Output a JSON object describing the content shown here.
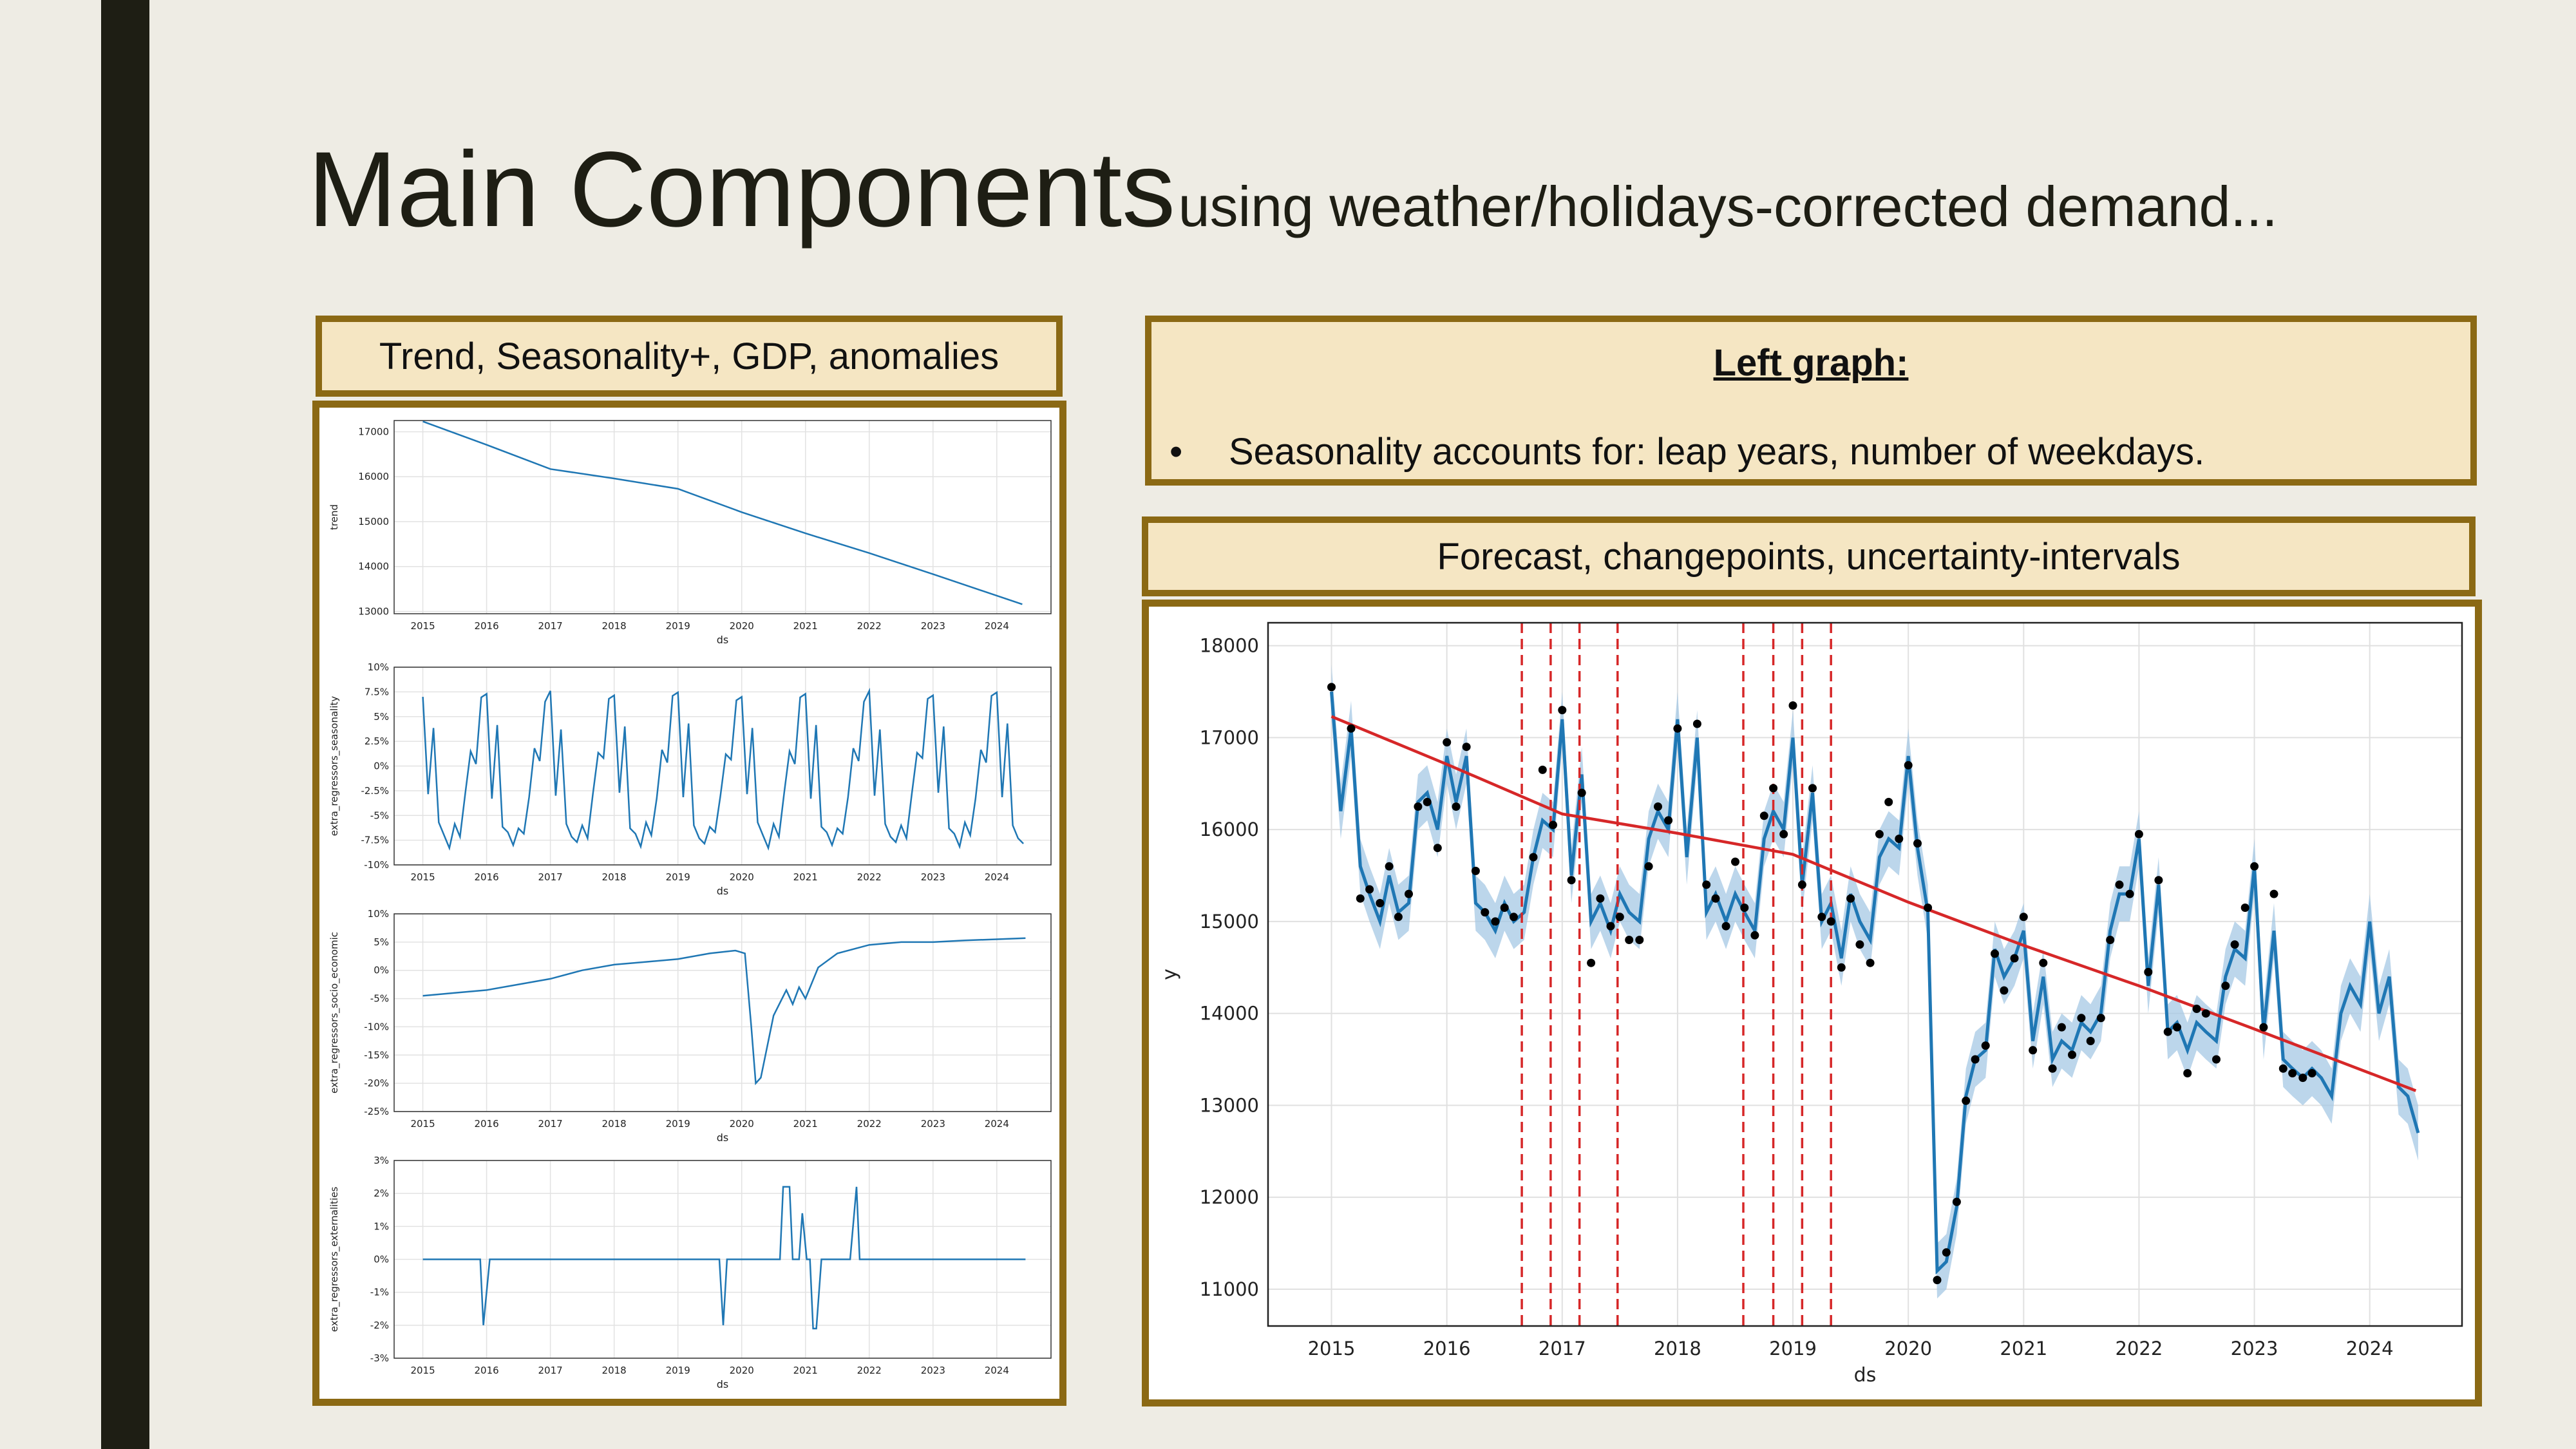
{
  "slide": {
    "title_main": "Main Components",
    "title_sub": "using weather/holidays-corrected demand...",
    "left_header": "Trend, Seasonality+, GDP, anomalies",
    "right_header": "Forecast, changepoints, uncertainty-intervals",
    "note_title": "Left graph:",
    "note_bullet": "•",
    "note_text": "Seasonality accounts for: leap years, number of weekdays."
  },
  "colors": {
    "accent_border": "#8B6914",
    "header_fill": "#F5E6C3",
    "series_blue": "#1f77b4",
    "trend_red": "#d62728",
    "band_blue": "#a6c8e4"
  },
  "chart_data": [
    {
      "type": "line",
      "xlabel": "ds",
      "ylabel": "trend",
      "x_ticks": [
        "2015",
        "2016",
        "2017",
        "2018",
        "2019",
        "2020",
        "2021",
        "2022",
        "2023",
        "2024"
      ],
      "y_ticks": [
        "17000",
        "16000",
        "15000",
        "14000",
        "13000"
      ],
      "ylim": [
        12950,
        17250
      ],
      "x": [
        2015.0,
        2016.0,
        2017.0,
        2018.0,
        2019.0,
        2020.0,
        2021.0,
        2022.0,
        2023.0,
        2024.4
      ],
      "y": [
        17230,
        16710,
        16170,
        15960,
        15730,
        15210,
        14740,
        14300,
        13830,
        13160
      ]
    },
    {
      "type": "line",
      "xlabel": "ds",
      "ylabel": "extra_regressors_seasonality",
      "x_ticks": [
        "2015",
        "2016",
        "2017",
        "2018",
        "2019",
        "2020",
        "2021",
        "2022",
        "2023",
        "2024"
      ],
      "y_ticks": [
        "10%",
        "7.5%",
        "5%",
        "2.5%",
        "0%",
        "-2.5%",
        "-5%",
        "-7.5%",
        "-10%"
      ],
      "ylim": [
        -10,
        10
      ],
      "y_monthly_pattern": [
        7.3,
        -3,
        4,
        -6,
        -7,
        -8,
        -6,
        -7,
        -3,
        1.5,
        0.5,
        6.8
      ]
    },
    {
      "type": "line",
      "xlabel": "ds",
      "ylabel": "extra_regressors_socio_economic",
      "x_ticks": [
        "2015",
        "2016",
        "2017",
        "2018",
        "2019",
        "2020",
        "2021",
        "2022",
        "2023",
        "2024"
      ],
      "y_ticks": [
        "10%",
        "5%",
        "0%",
        "-5%",
        "-10%",
        "-15%",
        "-20%",
        "-25%"
      ],
      "ylim": [
        -25,
        10
      ],
      "x": [
        2015.0,
        2015.5,
        2016.0,
        2016.5,
        2017.0,
        2017.5,
        2018.0,
        2018.5,
        2019.0,
        2019.5,
        2019.9,
        2020.05,
        2020.15,
        2020.22,
        2020.3,
        2020.5,
        2020.7,
        2020.8,
        2020.9,
        2021.0,
        2021.2,
        2021.5,
        2022.0,
        2022.5,
        2023.0,
        2023.5,
        2024.0,
        2024.45
      ],
      "y": [
        -4.5,
        -4,
        -3.5,
        -2.5,
        -1.5,
        0,
        1,
        1.5,
        2,
        3,
        3.5,
        3,
        -10,
        -20,
        -19,
        -8,
        -3.5,
        -6,
        -3,
        -5,
        0.5,
        3,
        4.5,
        5,
        5,
        5.3,
        5.5,
        5.7
      ]
    },
    {
      "type": "line",
      "xlabel": "ds",
      "ylabel": "extra_regressors_externalities",
      "x_ticks": [
        "2015",
        "2016",
        "2017",
        "2018",
        "2019",
        "2020",
        "2021",
        "2022",
        "2023",
        "2024"
      ],
      "y_ticks": [
        "3%",
        "2%",
        "1%",
        "0%",
        "-1%",
        "-2%",
        "-3%"
      ],
      "ylim": [
        -3,
        3
      ],
      "x": [
        2015.0,
        2015.9,
        2015.95,
        2016.05,
        2019.65,
        2019.71,
        2019.77,
        2020.6,
        2020.65,
        2020.75,
        2020.8,
        2020.9,
        2020.95,
        2021.02,
        2021.07,
        2021.12,
        2021.17,
        2021.25,
        2021.3,
        2021.7,
        2021.8,
        2021.85,
        2021.9,
        2024.45
      ],
      "y": [
        0,
        0,
        -2,
        0,
        0,
        -2,
        0,
        0,
        2.2,
        2.2,
        0,
        0,
        1.4,
        0,
        0,
        -2.1,
        -2.1,
        0,
        0,
        0,
        2.2,
        0,
        0,
        0
      ]
    },
    {
      "type": "line",
      "xlabel": "ds",
      "ylabel": "y",
      "x_ticks": [
        "2015",
        "2016",
        "2017",
        "2018",
        "2019",
        "2020",
        "2021",
        "2022",
        "2023",
        "2024"
      ],
      "y_ticks": [
        "18000",
        "17000",
        "16000",
        "15000",
        "14000",
        "13000",
        "12000",
        "11000"
      ],
      "xlim": [
        2014.45,
        2024.8
      ],
      "ylim": [
        10600,
        18250
      ],
      "changepoints": [
        2016.65,
        2016.9,
        2017.15,
        2017.48,
        2018.57,
        2018.83,
        2019.08,
        2019.33
      ],
      "trend": {
        "x": [
          2015.0,
          2016.0,
          2017.0,
          2018.0,
          2019.0,
          2020.0,
          2021.0,
          2022.0,
          2023.0,
          2024.4
        ],
        "y": [
          17230,
          16710,
          16170,
          15960,
          15730,
          15210,
          14740,
          14300,
          13830,
          13160
        ]
      },
      "forecast": {
        "x": [
          2015.0,
          2015.08,
          2015.17,
          2015.25,
          2015.33,
          2015.42,
          2015.5,
          2015.58,
          2015.67,
          2015.75,
          2015.83,
          2015.92,
          2016.0,
          2016.08,
          2016.17,
          2016.25,
          2016.33,
          2016.42,
          2016.5,
          2016.58,
          2016.67,
          2016.75,
          2016.83,
          2016.92,
          2017.0,
          2017.08,
          2017.17,
          2017.25,
          2017.33,
          2017.42,
          2017.5,
          2017.58,
          2017.67,
          2017.75,
          2017.83,
          2017.92,
          2018.0,
          2018.08,
          2018.17,
          2018.25,
          2018.33,
          2018.42,
          2018.5,
          2018.58,
          2018.67,
          2018.75,
          2018.83,
          2018.92,
          2019.0,
          2019.08,
          2019.17,
          2019.25,
          2019.33,
          2019.42,
          2019.5,
          2019.58,
          2019.67,
          2019.75,
          2019.83,
          2019.92,
          2020.0,
          2020.08,
          2020.17,
          2020.25,
          2020.33,
          2020.42,
          2020.5,
          2020.58,
          2020.67,
          2020.75,
          2020.83,
          2020.92,
          2021.0,
          2021.08,
          2021.17,
          2021.25,
          2021.33,
          2021.42,
          2021.5,
          2021.58,
          2021.67,
          2021.75,
          2021.83,
          2021.92,
          2022.0,
          2022.08,
          2022.17,
          2022.25,
          2022.33,
          2022.42,
          2022.5,
          2022.58,
          2022.67,
          2022.75,
          2022.83,
          2022.92,
          2023.0,
          2023.08,
          2023.17,
          2023.25,
          2023.33,
          2023.42,
          2023.5,
          2023.58,
          2023.67,
          2023.75,
          2023.83,
          2023.92,
          2024.0,
          2024.08,
          2024.17,
          2024.25,
          2024.33,
          2024.42
        ],
        "y": [
          17500,
          16200,
          17100,
          15600,
          15300,
          15000,
          15500,
          15100,
          15200,
          16300,
          16400,
          16000,
          16800,
          16300,
          16800,
          15200,
          15100,
          14900,
          15200,
          15000,
          15100,
          15700,
          16100,
          16000,
          17200,
          15500,
          16600,
          15000,
          15200,
          14900,
          15300,
          15100,
          15000,
          15900,
          16200,
          16000,
          17200,
          15700,
          17000,
          15100,
          15300,
          15000,
          15300,
          15100,
          14900,
          15900,
          16200,
          16000,
          17000,
          15400,
          16400,
          15000,
          15200,
          14600,
          15300,
          15000,
          14800,
          15700,
          15900,
          15800,
          16800,
          15800,
          15100,
          11200,
          11300,
          11900,
          13100,
          13500,
          13600,
          14700,
          14400,
          14600,
          14900,
          13700,
          14400,
          13500,
          13700,
          13600,
          13900,
          13800,
          14000,
          14900,
          15300,
          15300,
          15900,
          14300,
          15400,
          13800,
          13900,
          13600,
          13900,
          13800,
          13700,
          14400,
          14700,
          14600,
          15600,
          13800,
          14900,
          13500,
          13400,
          13300,
          13400,
          13300,
          13100,
          14000,
          14300,
          14100,
          15000,
          14000,
          14400,
          13200,
          13100,
          12700
        ],
        "band": 300
      },
      "points": [
        [
          2015.0,
          17550
        ],
        [
          2015.17,
          17100
        ],
        [
          2015.25,
          15250
        ],
        [
          2015.33,
          15350
        ],
        [
          2015.42,
          15200
        ],
        [
          2015.5,
          15600
        ],
        [
          2015.58,
          15050
        ],
        [
          2015.67,
          15300
        ],
        [
          2015.75,
          16250
        ],
        [
          2015.83,
          16300
        ],
        [
          2015.92,
          15800
        ],
        [
          2016.0,
          16950
        ],
        [
          2016.08,
          16250
        ],
        [
          2016.17,
          16900
        ],
        [
          2016.25,
          15550
        ],
        [
          2016.33,
          15100
        ],
        [
          2016.42,
          15000
        ],
        [
          2016.5,
          15150
        ],
        [
          2016.58,
          15050
        ],
        [
          2016.75,
          15700
        ],
        [
          2016.83,
          16650
        ],
        [
          2016.92,
          16050
        ],
        [
          2017.0,
          17300
        ],
        [
          2017.08,
          15450
        ],
        [
          2017.17,
          16400
        ],
        [
          2017.25,
          14550
        ],
        [
          2017.33,
          15250
        ],
        [
          2017.42,
          14950
        ],
        [
          2017.5,
          15050
        ],
        [
          2017.58,
          14800
        ],
        [
          2017.67,
          14800
        ],
        [
          2017.75,
          15600
        ],
        [
          2017.83,
          16250
        ],
        [
          2017.92,
          16100
        ],
        [
          2018.0,
          17100
        ],
        [
          2018.17,
          17150
        ],
        [
          2018.25,
          15400
        ],
        [
          2018.33,
          15250
        ],
        [
          2018.42,
          14950
        ],
        [
          2018.5,
          15650
        ],
        [
          2018.58,
          15150
        ],
        [
          2018.67,
          14850
        ],
        [
          2018.75,
          16150
        ],
        [
          2018.83,
          16450
        ],
        [
          2018.92,
          15950
        ],
        [
          2019.0,
          17350
        ],
        [
          2019.08,
          15400
        ],
        [
          2019.17,
          16450
        ],
        [
          2019.25,
          15050
        ],
        [
          2019.33,
          15000
        ],
        [
          2019.42,
          14500
        ],
        [
          2019.5,
          15250
        ],
        [
          2019.58,
          14750
        ],
        [
          2019.67,
          14550
        ],
        [
          2019.75,
          15950
        ],
        [
          2019.83,
          16300
        ],
        [
          2019.92,
          15900
        ],
        [
          2020.0,
          16700
        ],
        [
          2020.08,
          15850
        ],
        [
          2020.17,
          15150
        ],
        [
          2020.25,
          11100
        ],
        [
          2020.33,
          11400
        ],
        [
          2020.42,
          11950
        ],
        [
          2020.5,
          13050
        ],
        [
          2020.58,
          13500
        ],
        [
          2020.67,
          13650
        ],
        [
          2020.75,
          14650
        ],
        [
          2020.83,
          14250
        ],
        [
          2020.92,
          14600
        ],
        [
          2021.0,
          15050
        ],
        [
          2021.08,
          13600
        ],
        [
          2021.17,
          14550
        ],
        [
          2021.25,
          13400
        ],
        [
          2021.33,
          13850
        ],
        [
          2021.42,
          13550
        ],
        [
          2021.5,
          13950
        ],
        [
          2021.58,
          13700
        ],
        [
          2021.67,
          13950
        ],
        [
          2021.75,
          14800
        ],
        [
          2021.83,
          15400
        ],
        [
          2021.92,
          15300
        ],
        [
          2022.0,
          15950
        ],
        [
          2022.08,
          14450
        ],
        [
          2022.17,
          15450
        ],
        [
          2022.25,
          13800
        ],
        [
          2022.33,
          13850
        ],
        [
          2022.42,
          13350
        ],
        [
          2022.5,
          14050
        ],
        [
          2022.58,
          14000
        ],
        [
          2022.67,
          13500
        ],
        [
          2022.75,
          14300
        ],
        [
          2022.83,
          14750
        ],
        [
          2022.92,
          15150
        ],
        [
          2023.0,
          15600
        ],
        [
          2023.08,
          13850
        ],
        [
          2023.17,
          15300
        ],
        [
          2023.25,
          13400
        ],
        [
          2023.33,
          13350
        ],
        [
          2023.42,
          13300
        ],
        [
          2023.5,
          13350
        ]
      ]
    }
  ]
}
